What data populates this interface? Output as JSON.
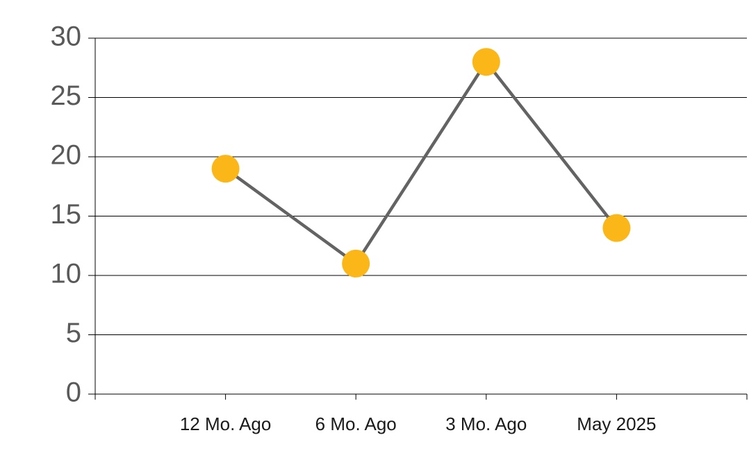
{
  "chart_data": {
    "type": "line",
    "categories": [
      "12 Mo. Ago",
      "6 Mo. Ago",
      "3 Mo. Ago",
      "May 2025"
    ],
    "series": [
      {
        "values": [
          19,
          11,
          28,
          14
        ],
        "color": "#fbb617",
        "line_color": "#636363"
      }
    ],
    "ylim": [
      0,
      30
    ],
    "yticks": [
      0,
      5,
      10,
      15,
      20,
      25,
      30
    ],
    "grid": true
  }
}
